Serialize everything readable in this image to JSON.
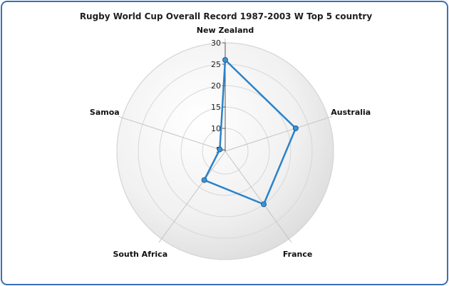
{
  "title": "Rugby World Cup Overall Record 1987-2003 W Top 5 country",
  "chart_data": {
    "type": "radar",
    "title": "Rugby World Cup Overall Record 1987-2003 W Top 5 country",
    "categories": [
      "New Zealand",
      "Australia",
      "France",
      "South Africa",
      "Samoa"
    ],
    "series": [
      {
        "values": [
          26,
          22,
          20,
          13,
          6
        ]
      }
    ],
    "ylim": [
      5,
      30
    ],
    "ticks": [
      5,
      10,
      15,
      20,
      25,
      30
    ],
    "grid": true,
    "legend": "none",
    "colors": {
      "series_line": "#2b82c9",
      "marker_fill": "#3a93d6",
      "marker_stroke": "#1f5e9a",
      "gridline": "#d7d7d7",
      "spoke": "#c4c4c4",
      "frame": "#3a6fb7"
    }
  }
}
